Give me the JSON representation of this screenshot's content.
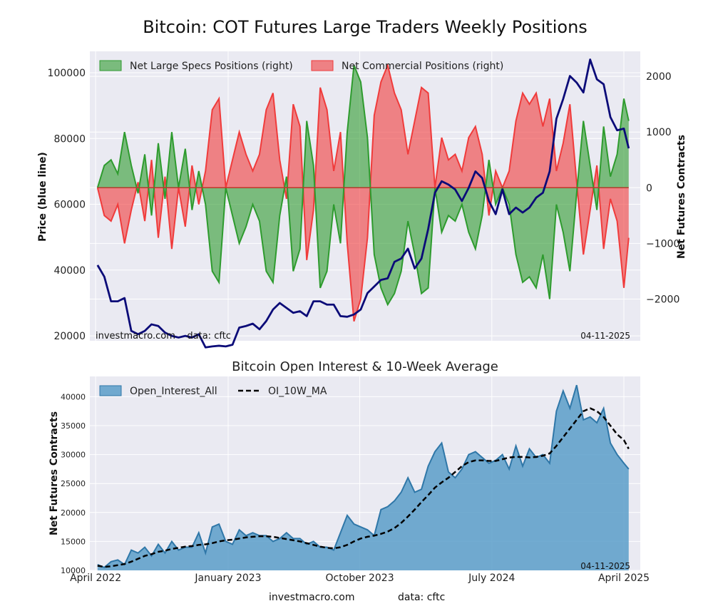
{
  "figure": {
    "title": "Bitcoin: COT Futures Large Traders Weekly Positions",
    "footer_site": "investmacro.com",
    "footer_data": "data: cftc"
  },
  "chart_data": [
    {
      "type": "line",
      "title": "Bitcoin: COT Futures Large Traders Weekly Positions",
      "xlabel": "",
      "ylabel": "Price (blue line)",
      "y2label": "Net Futures Contracts",
      "ylim": [
        18500,
        106500
      ],
      "y2lim": [
        -2750,
        2450
      ],
      "yticks": [
        20000,
        40000,
        60000,
        80000,
        100000
      ],
      "y2ticks": [
        -2000,
        -1000,
        0,
        1000,
        2000
      ],
      "xlim": [
        "2022-03-20",
        "2025-05-05"
      ],
      "grid": true,
      "legend": [
        "Net Large Specs Positions (right)",
        "Net Commercial Positions (right)"
      ],
      "legend_position": "top-left",
      "watermark": "investmacro.com    data: cftc",
      "date_label": "04-11-2025",
      "colors": {
        "price": "#0b0b78",
        "specs": "#2e9b2e",
        "commercial": "#f03b3b",
        "background": "#eaeaf2"
      },
      "x": [
        "2022-04-05",
        "2022-04-19",
        "2022-05-03",
        "2022-05-17",
        "2022-05-31",
        "2022-06-14",
        "2022-06-28",
        "2022-07-12",
        "2022-07-26",
        "2022-08-09",
        "2022-08-23",
        "2022-09-06",
        "2022-09-20",
        "2022-10-04",
        "2022-10-18",
        "2022-11-01",
        "2022-11-15",
        "2022-11-29",
        "2022-12-13",
        "2022-12-27",
        "2023-01-10",
        "2023-01-24",
        "2023-02-07",
        "2023-02-21",
        "2023-03-07",
        "2023-03-21",
        "2023-04-04",
        "2023-04-18",
        "2023-05-02",
        "2023-05-16",
        "2023-05-30",
        "2023-06-13",
        "2023-06-27",
        "2023-07-11",
        "2023-07-25",
        "2023-08-08",
        "2023-08-22",
        "2023-09-05",
        "2023-09-19",
        "2023-10-03",
        "2023-10-17",
        "2023-10-31",
        "2023-11-14",
        "2023-11-28",
        "2023-12-12",
        "2023-12-26",
        "2024-01-09",
        "2024-01-23",
        "2024-02-06",
        "2024-02-20",
        "2024-03-05",
        "2024-03-19",
        "2024-04-02",
        "2024-04-16",
        "2024-04-30",
        "2024-05-14",
        "2024-05-28",
        "2024-06-11",
        "2024-06-25",
        "2024-07-09",
        "2024-07-23",
        "2024-08-06",
        "2024-08-20",
        "2024-09-03",
        "2024-09-17",
        "2024-10-01",
        "2024-10-15",
        "2024-10-29",
        "2024-11-12",
        "2024-11-26",
        "2024-12-10",
        "2024-12-24",
        "2025-01-07",
        "2025-01-21",
        "2025-02-04",
        "2025-02-18",
        "2025-03-04",
        "2025-03-18",
        "2025-04-01",
        "2025-04-11"
      ],
      "series": [
        {
          "name": "Price",
          "axis": "left",
          "values": [
            41500,
            38000,
            30500,
            30500,
            31500,
            21500,
            20500,
            21500,
            23500,
            23000,
            21000,
            20000,
            19500,
            20000,
            19500,
            20500,
            16500,
            16800,
            17000,
            16800,
            17300,
            22500,
            23000,
            23700,
            22000,
            24500,
            28000,
            30000,
            28500,
            27000,
            27500,
            26000,
            30500,
            30500,
            29500,
            29500,
            26000,
            25800,
            26500,
            28000,
            33000,
            35000,
            37000,
            37500,
            42500,
            43500,
            46500,
            40500,
            43500,
            52500,
            63500,
            67000,
            66000,
            64500,
            61000,
            65000,
            70000,
            68000,
            61000,
            57000,
            64500,
            57000,
            59000,
            57500,
            59000,
            62000,
            63500,
            70000,
            86000,
            92000,
            99000,
            97000,
            94000,
            104000,
            98000,
            96500,
            86500,
            82500,
            83000,
            77000
          ]
        },
        {
          "name": "Net Large Specs Positions (right)",
          "axis": "right",
          "values": [
            0,
            400,
            500,
            250,
            1000,
            400,
            -100,
            600,
            -500,
            800,
            -200,
            1000,
            0,
            700,
            -400,
            300,
            -300,
            -1500,
            -1700,
            0,
            -500,
            -1000,
            -700,
            -300,
            -600,
            -1500,
            -1700,
            -500,
            200,
            -1500,
            -1100,
            1200,
            400,
            -1800,
            -1500,
            -300,
            -1000,
            1000,
            2200,
            1900,
            900,
            -1200,
            -1800,
            -2100,
            -1900,
            -1500,
            -600,
            -1200,
            -1900,
            -1800,
            0,
            -800,
            -500,
            -600,
            -300,
            -800,
            -1100,
            -500,
            500,
            -300,
            0,
            -300,
            -1200,
            -1700,
            -1600,
            -1800,
            -1200,
            -2000,
            -300,
            -800,
            -1500,
            -100,
            1200,
            400,
            -400,
            1100,
            200,
            600,
            1600,
            1200
          ]
        },
        {
          "name": "Net Commercial Positions (right)",
          "axis": "right",
          "values": [
            0,
            -500,
            -600,
            -300,
            -1000,
            -400,
            100,
            -600,
            500,
            -900,
            200,
            -1100,
            0,
            -700,
            400,
            -300,
            300,
            1400,
            1600,
            0,
            500,
            1000,
            600,
            300,
            600,
            1400,
            1700,
            500,
            -200,
            1500,
            1100,
            -1300,
            -400,
            1800,
            1400,
            300,
            1000,
            -1000,
            -2400,
            -2000,
            -900,
            1300,
            1900,
            2200,
            1700,
            1400,
            600,
            1200,
            1800,
            1700,
            0,
            900,
            500,
            600,
            300,
            900,
            1100,
            600,
            -500,
            300,
            0,
            300,
            1200,
            1700,
            1500,
            1700,
            1100,
            1600,
            300,
            800,
            1500,
            100,
            -1200,
            -400,
            400,
            -1100,
            -200,
            -600,
            -1800,
            -900
          ]
        }
      ]
    },
    {
      "type": "area",
      "title": "Bitcoin Open Interest & 10-Week Average",
      "xlabel": "",
      "ylabel": "Net Futures Contracts",
      "ylim": [
        10000,
        43500
      ],
      "yticks": [
        10000,
        15000,
        20000,
        25000,
        30000,
        35000,
        40000
      ],
      "xticks": [
        "April 2022",
        "January 2023",
        "October 2023",
        "July 2024",
        "April 2025"
      ],
      "xlim": [
        "2022-03-20",
        "2025-05-05"
      ],
      "grid": true,
      "legend": [
        "Open_Interest_All",
        "OI_10W_MA"
      ],
      "legend_position": "top-left",
      "date_label": "04-11-2025",
      "colors": {
        "area": "#5b9ec9",
        "area_line": "#2f77a8",
        "ma": "#000000",
        "background": "#eaeaf2"
      },
      "x": [
        "2022-04-05",
        "2022-04-19",
        "2022-05-03",
        "2022-05-17",
        "2022-05-31",
        "2022-06-14",
        "2022-06-28",
        "2022-07-12",
        "2022-07-26",
        "2022-08-09",
        "2022-08-23",
        "2022-09-06",
        "2022-09-20",
        "2022-10-04",
        "2022-10-18",
        "2022-11-01",
        "2022-11-15",
        "2022-11-29",
        "2022-12-13",
        "2022-12-27",
        "2023-01-10",
        "2023-01-24",
        "2023-02-07",
        "2023-02-21",
        "2023-03-07",
        "2023-03-21",
        "2023-04-04",
        "2023-04-18",
        "2023-05-02",
        "2023-05-16",
        "2023-05-30",
        "2023-06-13",
        "2023-06-27",
        "2023-07-11",
        "2023-07-25",
        "2023-08-08",
        "2023-08-22",
        "2023-09-05",
        "2023-09-19",
        "2023-10-03",
        "2023-10-17",
        "2023-10-31",
        "2023-11-14",
        "2023-11-28",
        "2023-12-12",
        "2023-12-26",
        "2024-01-09",
        "2024-01-23",
        "2024-02-06",
        "2024-02-20",
        "2024-03-05",
        "2024-03-19",
        "2024-04-02",
        "2024-04-16",
        "2024-04-30",
        "2024-05-14",
        "2024-05-28",
        "2024-06-11",
        "2024-06-25",
        "2024-07-09",
        "2024-07-23",
        "2024-08-06",
        "2024-08-20",
        "2024-09-03",
        "2024-09-17",
        "2024-10-01",
        "2024-10-15",
        "2024-10-29",
        "2024-11-12",
        "2024-11-26",
        "2024-12-10",
        "2024-12-24",
        "2025-01-07",
        "2025-01-21",
        "2025-02-04",
        "2025-02-18",
        "2025-03-04",
        "2025-03-18",
        "2025-04-01",
        "2025-04-11"
      ],
      "series": [
        {
          "name": "Open_Interest_All",
          "values": [
            11000,
            10500,
            11500,
            11800,
            11000,
            13500,
            13000,
            14000,
            12500,
            14500,
            13000,
            15000,
            13500,
            14000,
            14000,
            16500,
            13000,
            17500,
            18000,
            15000,
            14500,
            17000,
            16000,
            16500,
            16000,
            16000,
            15000,
            15500,
            16500,
            15500,
            15500,
            14500,
            15000,
            14000,
            14000,
            13500,
            16500,
            19500,
            18000,
            17500,
            17000,
            16000,
            20500,
            21000,
            22000,
            23500,
            26000,
            23500,
            24000,
            28000,
            30500,
            32000,
            27000,
            26000,
            27500,
            30000,
            30500,
            29500,
            28500,
            29000,
            30000,
            27500,
            31500,
            28000,
            31000,
            29500,
            30000,
            28500,
            37500,
            41000,
            38000,
            42000,
            36000,
            36500,
            35500,
            38000,
            32000,
            30000,
            28500,
            27500
          ]
        },
        {
          "name": "OI_10W_MA",
          "values": [
            10800,
            10600,
            10700,
            10900,
            11100,
            11500,
            12000,
            12500,
            12800,
            13200,
            13400,
            13700,
            13900,
            14100,
            14200,
            14400,
            14500,
            14700,
            15000,
            15200,
            15300,
            15500,
            15700,
            15800,
            15900,
            15900,
            15800,
            15600,
            15400,
            15200,
            15000,
            14700,
            14400,
            14100,
            13900,
            13800,
            14000,
            14400,
            15000,
            15500,
            15800,
            16000,
            16300,
            16700,
            17300,
            18200,
            19300,
            20500,
            21800,
            23000,
            24300,
            25200,
            26000,
            27000,
            28000,
            28700,
            29000,
            29000,
            28900,
            28900,
            29200,
            29500,
            29600,
            29600,
            29500,
            29600,
            29800,
            30200,
            31500,
            33000,
            34500,
            36000,
            37500,
            38000,
            37500,
            36500,
            35000,
            33500,
            32500,
            31000
          ]
        }
      ]
    }
  ]
}
